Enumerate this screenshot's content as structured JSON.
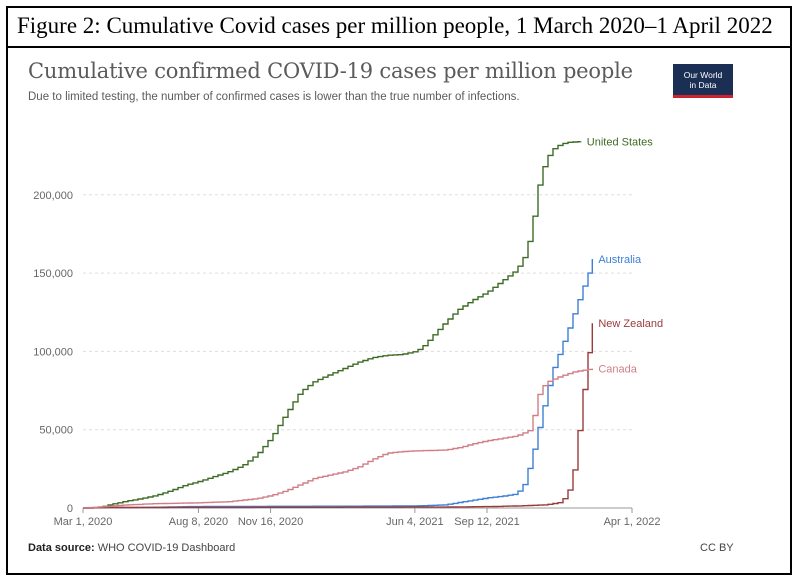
{
  "figure_title": "Figure 2: Cumulative Covid cases per million people, 1 March 2020–1 April 2022",
  "logo": {
    "line1": "Our World",
    "line2": "in Data"
  },
  "source": {
    "label": "Data source:",
    "text": "WHO COVID-19 Dashboard"
  },
  "license": "CC BY",
  "colors": {
    "united_states": "#3d6b25",
    "australia": "#3d7fd6",
    "new_zealand": "#9a3b3b",
    "canada": "#d07e86",
    "grid": "#dddddd",
    "axis": "#999999"
  },
  "chart_data": {
    "type": "line",
    "title": "Cumulative confirmed COVID-19 cases per million people",
    "subtitle": "Due to limited testing, the number of confirmed cases is lower than the true number of infections.",
    "xlabel": "",
    "ylabel": "",
    "x_unit": "days since Mar 1, 2020",
    "xlim": [
      0,
      761
    ],
    "ylim": [
      0,
      235000
    ],
    "y_ticks": [
      {
        "value": 0,
        "label": "0"
      },
      {
        "value": 50000,
        "label": "50,000"
      },
      {
        "value": 100000,
        "label": "100,000"
      },
      {
        "value": 150000,
        "label": "150,000"
      },
      {
        "value": 200000,
        "label": "200,000"
      }
    ],
    "x_ticks": [
      {
        "value": 0,
        "label": "Mar 1, 2020"
      },
      {
        "value": 160,
        "label": "Aug 8, 2020"
      },
      {
        "value": 260,
        "label": "Nov 16, 2020"
      },
      {
        "value": 460,
        "label": "Jun 4, 2021"
      },
      {
        "value": 560,
        "label": "Sep 12, 2021"
      },
      {
        "value": 761,
        "label": "Apr 1, 2022"
      }
    ],
    "series": [
      {
        "name": "United States",
        "key": "united_states",
        "points": [
          [
            0,
            0
          ],
          [
            20,
            200
          ],
          [
            40,
            2500
          ],
          [
            60,
            4500
          ],
          [
            80,
            6000
          ],
          [
            100,
            8000
          ],
          [
            120,
            11000
          ],
          [
            140,
            14500
          ],
          [
            160,
            17000
          ],
          [
            180,
            20000
          ],
          [
            200,
            23000
          ],
          [
            220,
            27000
          ],
          [
            240,
            34000
          ],
          [
            260,
            45000
          ],
          [
            280,
            60000
          ],
          [
            300,
            74000
          ],
          [
            320,
            81000
          ],
          [
            340,
            85000
          ],
          [
            360,
            89000
          ],
          [
            380,
            93000
          ],
          [
            400,
            96000
          ],
          [
            420,
            97500
          ],
          [
            440,
            98000
          ],
          [
            460,
            100000
          ],
          [
            470,
            103000
          ],
          [
            480,
            108000
          ],
          [
            500,
            118000
          ],
          [
            520,
            127000
          ],
          [
            540,
            133000
          ],
          [
            560,
            138000
          ],
          [
            580,
            145000
          ],
          [
            600,
            152000
          ],
          [
            610,
            160000
          ],
          [
            620,
            175000
          ],
          [
            630,
            205000
          ],
          [
            640,
            222000
          ],
          [
            650,
            229000
          ],
          [
            660,
            232000
          ],
          [
            670,
            233500
          ],
          [
            690,
            234000
          ]
        ]
      },
      {
        "name": "Australia",
        "key": "australia",
        "points": [
          [
            0,
            0
          ],
          [
            20,
            200
          ],
          [
            60,
            300
          ],
          [
            100,
            500
          ],
          [
            150,
            900
          ],
          [
            200,
            1000
          ],
          [
            300,
            1100
          ],
          [
            400,
            1200
          ],
          [
            460,
            1300
          ],
          [
            500,
            2000
          ],
          [
            520,
            3500
          ],
          [
            540,
            5000
          ],
          [
            560,
            6500
          ],
          [
            580,
            7500
          ],
          [
            600,
            9000
          ],
          [
            610,
            15000
          ],
          [
            620,
            30000
          ],
          [
            630,
            50000
          ],
          [
            640,
            70000
          ],
          [
            650,
            88000
          ],
          [
            660,
            100000
          ],
          [
            670,
            112000
          ],
          [
            680,
            125000
          ],
          [
            690,
            138000
          ],
          [
            700,
            150000
          ],
          [
            706,
            159000
          ]
        ]
      },
      {
        "name": "New Zealand",
        "key": "new_zealand",
        "points": [
          [
            0,
            0
          ],
          [
            30,
            300
          ],
          [
            60,
            320
          ],
          [
            200,
            400
          ],
          [
            400,
            500
          ],
          [
            500,
            600
          ],
          [
            560,
            900
          ],
          [
            600,
            1300
          ],
          [
            640,
            2000
          ],
          [
            660,
            3500
          ],
          [
            670,
            8000
          ],
          [
            678,
            20000
          ],
          [
            685,
            45000
          ],
          [
            692,
            72000
          ],
          [
            699,
            96000
          ],
          [
            706,
            118000
          ]
        ]
      },
      {
        "name": "Canada",
        "key": "canada",
        "points": [
          [
            0,
            0
          ],
          [
            30,
            1000
          ],
          [
            60,
            2000
          ],
          [
            100,
            2800
          ],
          [
            150,
            3200
          ],
          [
            200,
            4000
          ],
          [
            240,
            6000
          ],
          [
            260,
            8000
          ],
          [
            280,
            11000
          ],
          [
            300,
            15000
          ],
          [
            320,
            19000
          ],
          [
            340,
            21000
          ],
          [
            360,
            23000
          ],
          [
            380,
            26000
          ],
          [
            400,
            31000
          ],
          [
            420,
            35000
          ],
          [
            440,
            36000
          ],
          [
            460,
            36500
          ],
          [
            500,
            37000
          ],
          [
            520,
            38500
          ],
          [
            540,
            41000
          ],
          [
            560,
            43000
          ],
          [
            580,
            44500
          ],
          [
            600,
            46000
          ],
          [
            620,
            50000
          ],
          [
            625,
            62000
          ],
          [
            630,
            72000
          ],
          [
            640,
            80000
          ],
          [
            660,
            84000
          ],
          [
            680,
            87000
          ],
          [
            706,
            89000
          ]
        ]
      }
    ]
  }
}
